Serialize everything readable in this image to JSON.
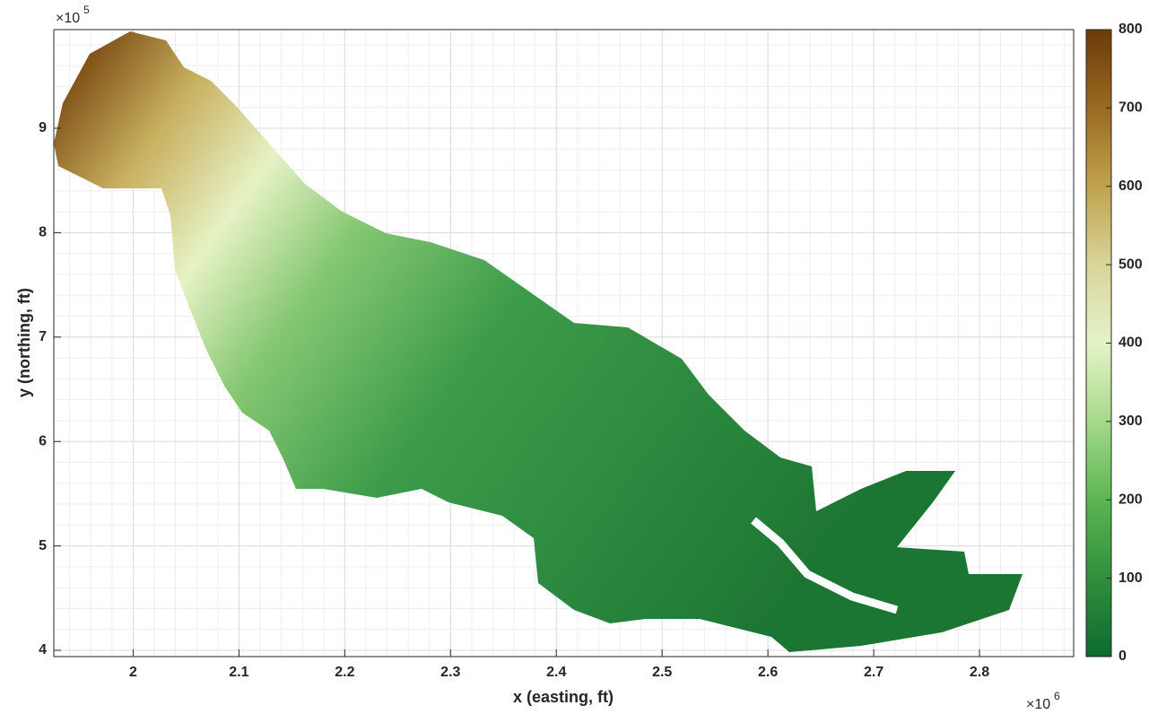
{
  "chart_data": {
    "type": "raster",
    "xlabel": "x (easting, ft)",
    "ylabel": "y (northing, ft)",
    "x_exponent": {
      "base": "×10",
      "power": "6"
    },
    "y_exponent": {
      "base": "×10",
      "power": "5"
    },
    "xlim": [
      1925000,
      2889000
    ],
    "ylim": [
      394000,
      994500
    ],
    "xticks": [
      {
        "value": 2000000,
        "label": "2"
      },
      {
        "value": 2100000,
        "label": "2.1"
      },
      {
        "value": 2200000,
        "label": "2.2"
      },
      {
        "value": 2300000,
        "label": "2.3"
      },
      {
        "value": 2400000,
        "label": "2.4"
      },
      {
        "value": 2500000,
        "label": "2.5"
      },
      {
        "value": 2600000,
        "label": "2.6"
      },
      {
        "value": 2700000,
        "label": "2.7"
      },
      {
        "value": 2800000,
        "label": "2.8"
      }
    ],
    "yticks": [
      {
        "value": 400000,
        "label": "4"
      },
      {
        "value": 500000,
        "label": "5"
      },
      {
        "value": 600000,
        "label": "6"
      },
      {
        "value": 700000,
        "label": "7"
      },
      {
        "value": 800000,
        "label": "8"
      },
      {
        "value": 900000,
        "label": "9"
      }
    ],
    "grid": true,
    "minor_grid": true,
    "clim": [
      0,
      800
    ],
    "cticks": [
      0,
      100,
      200,
      300,
      400,
      500,
      600,
      700,
      800
    ],
    "colormap": [
      "#0f6a30",
      "#2f8f3c",
      "#5cb552",
      "#a6d98a",
      "#e4f3c8",
      "#d9d49a",
      "#bfa24e",
      "#9a6a22",
      "#6b3a0a"
    ]
  }
}
